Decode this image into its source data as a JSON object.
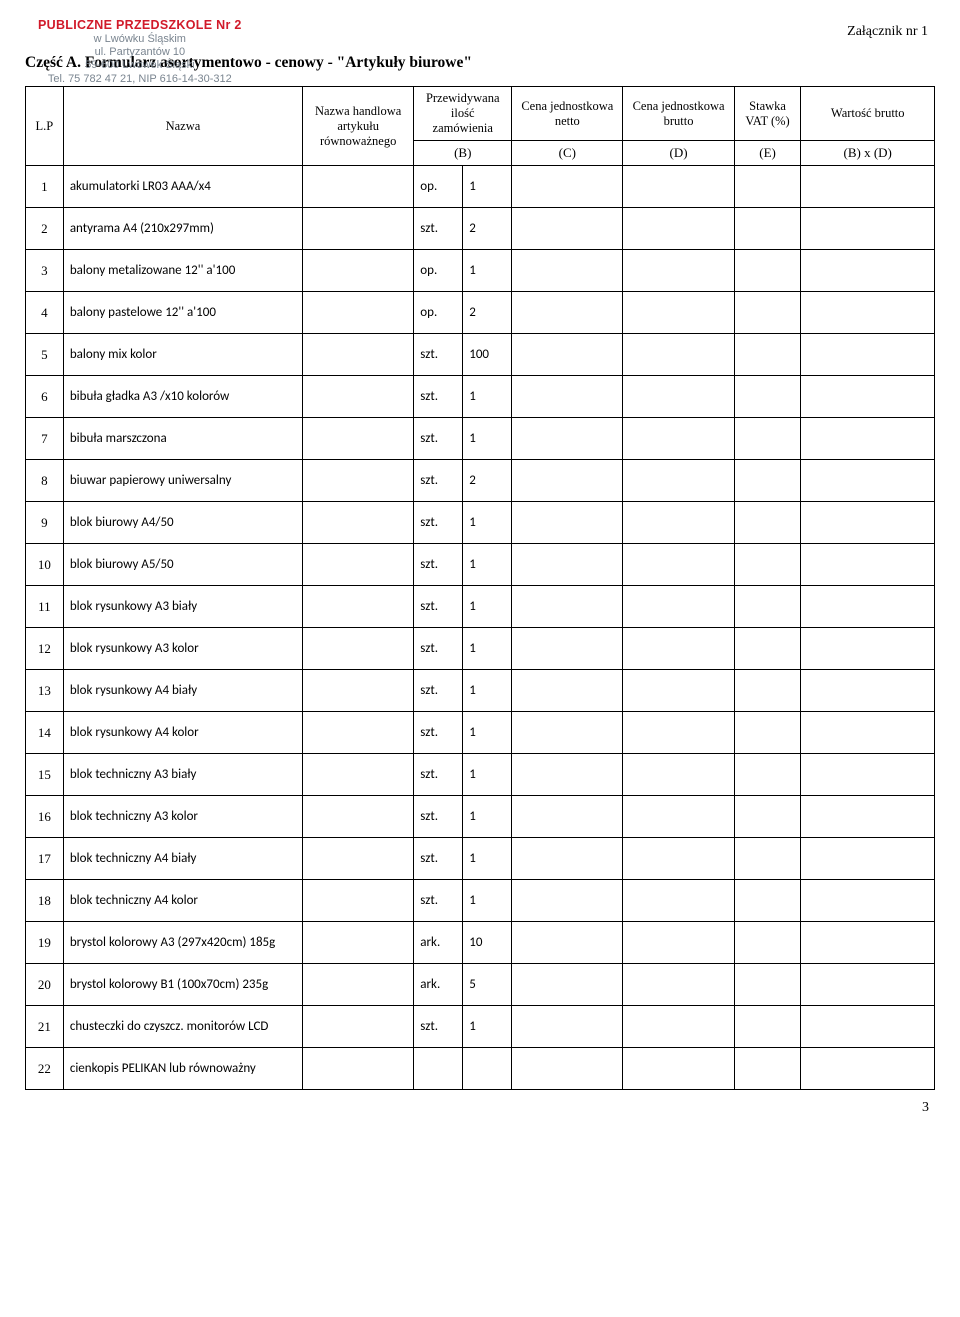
{
  "stamp": {
    "line1": "PUBLICZNE PRZEDSZKOLE Nr 2",
    "line2": "w Lwówku Śląskim",
    "line3": "ul. Partyzantów 10",
    "line4": "59-600 Lwówek Śląski",
    "line5": "Tel. 75 782 47 21, NIP 616-14-30-312"
  },
  "attachment": "Załącznik nr 1",
  "title": "Część A. Formularz asortymentowo - cenowy - \"Artykuły biurowe\"",
  "header": {
    "lp": "L.P",
    "name": "Nazwa",
    "eq": "Nazwa handlowa artykułu równoważnego",
    "qty": "Przewidywana ilość zamówienia",
    "netto": "Cena jednostkowa netto",
    "brutto": "Cena jednostkowa brutto",
    "vat": "Stawka VAT (%)",
    "total": "Wartość brutto",
    "b": "(B)",
    "c": "(C)",
    "d": "(D)",
    "e": "(E)",
    "f": "(B) x (D)"
  },
  "rows": [
    {
      "lp": "1",
      "name": "akumulatorki LR03 AAA/x4",
      "unit": "op.",
      "qty": "1"
    },
    {
      "lp": "2",
      "name": "antyrama A4 (210x297mm)",
      "unit": "szt.",
      "qty": "2"
    },
    {
      "lp": "3",
      "name": "balony metalizowane 12'' a'100",
      "unit": "op.",
      "qty": "1"
    },
    {
      "lp": "4",
      "name": "balony pastelowe 12'' a'100",
      "unit": "op.",
      "qty": "2"
    },
    {
      "lp": "5",
      "name": "balony mix kolor",
      "unit": "szt.",
      "qty": "100"
    },
    {
      "lp": "6",
      "name": "bibuła gładka A3 /x10 kolorów",
      "unit": "szt.",
      "qty": "1"
    },
    {
      "lp": "7",
      "name": "bibuła marszczona",
      "unit": "szt.",
      "qty": "1"
    },
    {
      "lp": "8",
      "name": "biuwar papierowy uniwersalny",
      "unit": "szt.",
      "qty": "2"
    },
    {
      "lp": "9",
      "name": "blok biurowy A4/50",
      "unit": "szt.",
      "qty": "1"
    },
    {
      "lp": "10",
      "name": "blok biurowy A5/50",
      "unit": "szt.",
      "qty": "1"
    },
    {
      "lp": "11",
      "name": "blok rysunkowy A3 biały",
      "unit": "szt.",
      "qty": "1"
    },
    {
      "lp": "12",
      "name": "blok rysunkowy A3 kolor",
      "unit": "szt.",
      "qty": "1"
    },
    {
      "lp": "13",
      "name": "blok rysunkowy A4 biały",
      "unit": "szt.",
      "qty": "1"
    },
    {
      "lp": "14",
      "name": "blok rysunkowy A4 kolor",
      "unit": "szt.",
      "qty": "1"
    },
    {
      "lp": "15",
      "name": "blok techniczny A3 biały",
      "unit": "szt.",
      "qty": "1"
    },
    {
      "lp": "16",
      "name": "blok techniczny A3 kolor",
      "unit": "szt.",
      "qty": "1"
    },
    {
      "lp": "17",
      "name": "blok techniczny A4 biały",
      "unit": "szt.",
      "qty": "1"
    },
    {
      "lp": "18",
      "name": "blok techniczny A4 kolor",
      "unit": "szt.",
      "qty": "1"
    },
    {
      "lp": "19",
      "name": "brystol kolorowy A3 (297x420cm) 185g",
      "unit": "ark.",
      "qty": "10"
    },
    {
      "lp": "20",
      "name": "brystol kolorowy B1 (100x70cm) 235g",
      "unit": "ark.",
      "qty": "5"
    },
    {
      "lp": "21",
      "name": "chusteczki do czyszcz. monitorów LCD",
      "unit": "szt.",
      "qty": "1"
    },
    {
      "lp": "22",
      "name": "cienkopis  PELIKAN lub równoważny",
      "unit": "",
      "qty": ""
    }
  ],
  "page_number": "3"
}
